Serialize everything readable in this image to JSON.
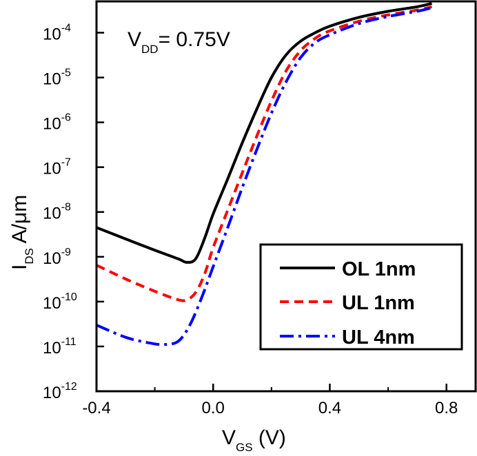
{
  "chart_data": {
    "type": "line",
    "title": "",
    "annotation": {
      "main": "V",
      "sub": "DD",
      "rest": "= 0.75V"
    },
    "xlabel": {
      "main": "V",
      "sub": "GS",
      "rest": " (V)"
    },
    "ylabel": {
      "main": "I",
      "sub": "DS",
      "rest": " A/μm"
    },
    "x_scale": "linear",
    "y_scale": "log",
    "xlim": [
      -0.4,
      0.9
    ],
    "ylim": [
      1e-12,
      0.0005
    ],
    "x_ticks": [
      -0.4,
      0.0,
      0.4,
      0.8
    ],
    "x_tick_labels": [
      "-0.4",
      "0.0",
      "0.4",
      "0.8"
    ],
    "y_ticks": [
      {
        "base": "10",
        "exp": "-12"
      },
      {
        "base": "10",
        "exp": "-11"
      },
      {
        "base": "10",
        "exp": "-10"
      },
      {
        "base": "10",
        "exp": "-9"
      },
      {
        "base": "10",
        "exp": "-8"
      },
      {
        "base": "10",
        "exp": "-7"
      },
      {
        "base": "10",
        "exp": "-6"
      },
      {
        "base": "10",
        "exp": "-5"
      },
      {
        "base": "10",
        "exp": "-4"
      }
    ],
    "grid": false,
    "legend_position": "bottom-right",
    "series": [
      {
        "name": "OL 1nm",
        "color": "#000000",
        "style": "solid",
        "points": [
          [
            -0.4,
            4.5e-09
          ],
          [
            -0.3,
            2.5e-09
          ],
          [
            -0.2,
            1.4e-09
          ],
          [
            -0.12,
            9e-10
          ],
          [
            -0.09,
            7.5e-10
          ],
          [
            -0.06,
            9e-10
          ],
          [
            -0.03,
            2.5e-09
          ],
          [
            0.0,
            9e-09
          ],
          [
            0.05,
            5.5e-08
          ],
          [
            0.1,
            3.5e-07
          ],
          [
            0.15,
            2e-06
          ],
          [
            0.2,
            1e-05
          ],
          [
            0.25,
            3.2e-05
          ],
          [
            0.3,
            6.5e-05
          ],
          [
            0.35,
            0.0001
          ],
          [
            0.4,
            0.00014
          ],
          [
            0.5,
            0.00022
          ],
          [
            0.6,
            0.0003
          ],
          [
            0.7,
            0.00038
          ],
          [
            0.75,
            0.00045
          ]
        ]
      },
      {
        "name": "UL 1nm",
        "color": "#ff0000",
        "style": "dashed",
        "points": [
          [
            -0.4,
            6.5e-10
          ],
          [
            -0.3,
            3.2e-10
          ],
          [
            -0.2,
            1.7e-10
          ],
          [
            -0.12,
            1.1e-10
          ],
          [
            -0.09,
            1.1e-10
          ],
          [
            -0.06,
            1.6e-10
          ],
          [
            -0.03,
            4e-10
          ],
          [
            0.0,
            1.6e-09
          ],
          [
            0.05,
            1.1e-08
          ],
          [
            0.1,
            7.5e-08
          ],
          [
            0.15,
            5e-07
          ],
          [
            0.2,
            3e-06
          ],
          [
            0.25,
            1.4e-05
          ],
          [
            0.3,
            4e-05
          ],
          [
            0.35,
            7.5e-05
          ],
          [
            0.4,
            0.00011
          ],
          [
            0.5,
            0.00018
          ],
          [
            0.6,
            0.00025
          ],
          [
            0.7,
            0.00032
          ],
          [
            0.75,
            0.00038
          ]
        ]
      },
      {
        "name": "UL 4nm",
        "color": "#0000ff",
        "style": "dashdot",
        "points": [
          [
            -0.4,
            3e-11
          ],
          [
            -0.3,
            1.6e-11
          ],
          [
            -0.22,
            1.2e-11
          ],
          [
            -0.17,
            1.1e-11
          ],
          [
            -0.12,
            1.3e-11
          ],
          [
            -0.08,
            3e-11
          ],
          [
            -0.04,
            1.2e-10
          ],
          [
            0.0,
            6e-10
          ],
          [
            0.05,
            4.5e-09
          ],
          [
            0.1,
            3.5e-08
          ],
          [
            0.15,
            2.5e-07
          ],
          [
            0.2,
            1.6e-06
          ],
          [
            0.25,
            8e-06
          ],
          [
            0.3,
            2.8e-05
          ],
          [
            0.35,
            6e-05
          ],
          [
            0.4,
            9e-05
          ],
          [
            0.5,
            0.00016
          ],
          [
            0.6,
            0.00023
          ],
          [
            0.7,
            0.0003
          ],
          [
            0.75,
            0.00036
          ]
        ]
      }
    ]
  }
}
